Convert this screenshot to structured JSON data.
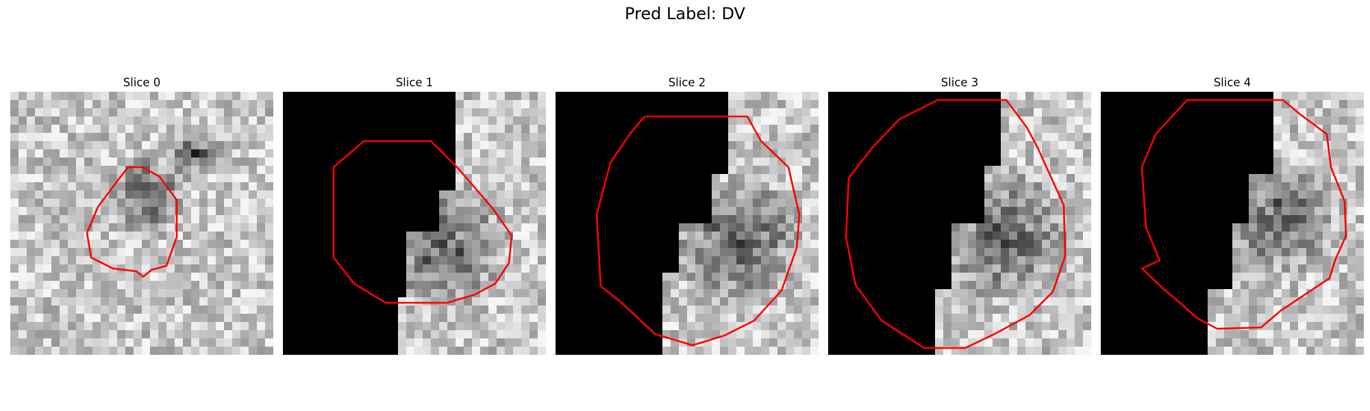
{
  "figure": {
    "title": "Pred Label: DV",
    "panels": [
      {
        "title": "Slice 0"
      },
      {
        "title": "Slice 1"
      },
      {
        "title": "Slice 2"
      },
      {
        "title": "Slice 3"
      },
      {
        "title": "Slice 4"
      }
    ]
  },
  "colors": {
    "contour": "#ff0000",
    "background": "#ffffff",
    "masked_region": "#000000"
  }
}
